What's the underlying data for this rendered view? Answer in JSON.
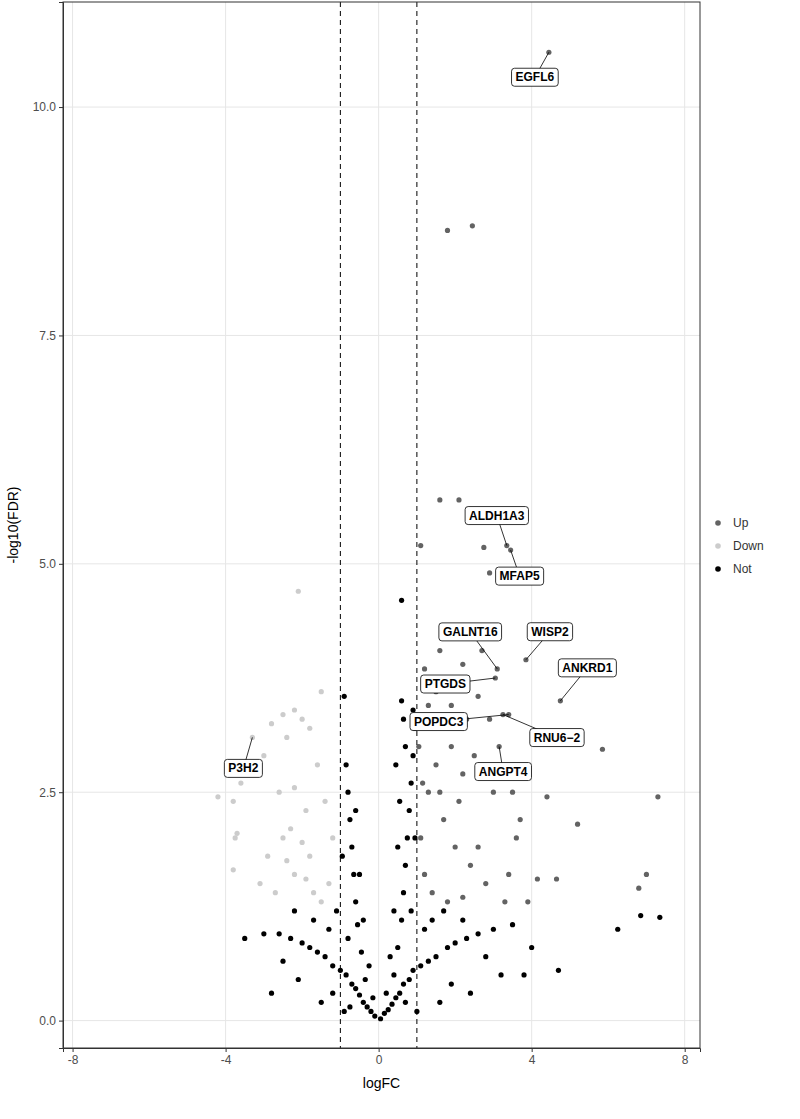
{
  "chart_data": {
    "type": "scatter",
    "x_label": "logFC",
    "y_label": "-log10(FDR)",
    "xlim": [
      -8.25,
      8.4
    ],
    "ylim": [
      -0.3,
      11.15
    ],
    "xticks": [
      -8,
      -4,
      0,
      4,
      8
    ],
    "yticks": [
      {
        "value": 0,
        "label": "0.0"
      },
      2.5,
      {
        "value": 5,
        "label": "5.0"
      },
      7.5,
      {
        "value": 10,
        "label": "10.0"
      }
    ],
    "grid": true,
    "legend": "right",
    "marker": "circle",
    "vlines": [
      -1,
      1
    ],
    "series": [
      {
        "name": "Up",
        "color": "#636363",
        "x": [
          4.45,
          3.35,
          3.45,
          3.1,
          3.85,
          4.75,
          3.05,
          3.4,
          3.25,
          3.15,
          1.8,
          2.45,
          1.6,
          2.1,
          2.75,
          1.1,
          2.9,
          1.6,
          2.2,
          1.5,
          2.6,
          1.9,
          2.3,
          1.3,
          5.85,
          7.3,
          5.2,
          4.4,
          3.7,
          3.6,
          4.65,
          4.15,
          7.0,
          6.8,
          3.9,
          3.3,
          2.8,
          2.4,
          2.0,
          1.7,
          1.3,
          1.5,
          2.5,
          3.0,
          1.2,
          1.4,
          1.8,
          2.2,
          2.6,
          3.4,
          1.1,
          1.6,
          2.1,
          3.5,
          1.9,
          2.9,
          2.2,
          1.05,
          1.2,
          2.7,
          1.15
        ],
        "values": [
          10.6,
          5.2,
          5.15,
          3.85,
          3.95,
          3.5,
          3.75,
          3.35,
          3.35,
          3.0,
          8.65,
          8.7,
          5.7,
          5.7,
          5.18,
          5.2,
          4.9,
          4.05,
          3.9,
          3.6,
          3.55,
          3.45,
          3.3,
          3.45,
          2.97,
          2.45,
          2.15,
          2.45,
          2.2,
          2.0,
          1.55,
          1.55,
          1.6,
          1.45,
          1.3,
          1.3,
          1.5,
          1.7,
          1.9,
          2.2,
          2.5,
          2.8,
          2.9,
          2.5,
          1.6,
          1.4,
          1.3,
          1.35,
          1.9,
          1.6,
          2.0,
          2.5,
          2.4,
          2.5,
          3.0,
          3.3,
          2.7,
          3.0,
          3.85,
          4.05,
          2.6
        ]
      },
      {
        "name": "Down",
        "color": "#cccccc",
        "x": [
          -3.3,
          -2.1,
          -1.5,
          -2.2,
          -2.5,
          -2.0,
          -1.8,
          -2.8,
          -2.4,
          -3.0,
          -3.4,
          -3.6,
          -4.2,
          -3.8,
          -2.2,
          -1.6,
          -2.6,
          -1.9,
          -2.3,
          -1.4,
          -3.7,
          -3.75,
          -3.8,
          -3.1,
          -2.7,
          -2.2,
          -1.8,
          -2.0,
          -1.7,
          -2.4,
          -1.3,
          -1.5,
          -2.9,
          -2.5,
          -1.2,
          -1.9
        ],
        "values": [
          3.1,
          4.7,
          3.6,
          3.4,
          3.35,
          3.3,
          3.2,
          3.25,
          3.1,
          2.9,
          2.75,
          2.6,
          2.45,
          2.4,
          2.55,
          2.8,
          2.5,
          2.3,
          2.1,
          2.4,
          2.05,
          2.0,
          1.65,
          1.5,
          1.4,
          1.6,
          1.8,
          1.95,
          1.4,
          1.75,
          1.5,
          1.3,
          1.8,
          2.0,
          2.0,
          1.55
        ]
      },
      {
        "name": "Not",
        "color": "#000000",
        "x": [
          0.05,
          -0.1,
          0.15,
          -0.2,
          0.25,
          -0.3,
          0.35,
          -0.4,
          0.45,
          -0.5,
          0.55,
          -0.6,
          0.65,
          -0.7,
          0.8,
          -0.85,
          0.9,
          -1.0,
          1.1,
          -1.2,
          1.3,
          -1.4,
          1.5,
          -1.6,
          1.8,
          -1.8,
          2.0,
          -2.0,
          2.3,
          -2.3,
          2.6,
          -2.6,
          3.0,
          -3.0,
          3.5,
          -3.5,
          4.0,
          4.7,
          6.25,
          6.85,
          7.35,
          3.2,
          -2.8,
          2.4,
          -1.5,
          1.6,
          -0.9,
          1.0,
          0.4,
          -0.35,
          0.5,
          -0.45,
          0.6,
          -0.55,
          0.65,
          -0.6,
          0.7,
          -0.65,
          0.75,
          -0.7,
          0.8,
          -0.75,
          0.85,
          -0.8,
          0.9,
          -0.85,
          0.95,
          -0.9,
          0.6,
          0.65,
          0.6,
          0.9,
          0.95,
          -0.95,
          1.2,
          -1.1,
          1.4,
          -1.3,
          0.3,
          -0.25,
          0.2,
          -0.15,
          0.7,
          -0.75,
          1.9,
          -2.1,
          2.8,
          -2.5,
          3.8,
          -1.2,
          0.5,
          -0.5,
          0.55,
          0.4,
          -0.4,
          0.85,
          -0.8,
          1.7,
          -1.7,
          2.2,
          -2.2,
          0.45,
          0.7,
          -0.6
        ],
        "values": [
          0.02,
          0.05,
          0.08,
          0.1,
          0.12,
          0.15,
          0.18,
          0.2,
          0.25,
          0.28,
          0.3,
          0.35,
          0.4,
          0.4,
          0.45,
          0.5,
          0.55,
          0.55,
          0.6,
          0.6,
          0.65,
          0.7,
          0.7,
          0.75,
          0.8,
          0.8,
          0.85,
          0.85,
          0.9,
          0.9,
          0.95,
          0.95,
          1.0,
          0.95,
          1.05,
          0.9,
          0.8,
          0.55,
          1.0,
          1.15,
          1.13,
          0.5,
          0.3,
          0.3,
          0.2,
          0.2,
          0.1,
          0.1,
          0.5,
          0.45,
          0.8,
          0.75,
          1.1,
          1.05,
          1.4,
          1.3,
          1.7,
          1.6,
          2.0,
          1.9,
          2.3,
          2.2,
          2.6,
          2.5,
          2.9,
          2.8,
          3.2,
          3.55,
          3.5,
          3.3,
          4.6,
          3.4,
          2.0,
          1.8,
          1.0,
          1.2,
          1.1,
          1.0,
          0.7,
          0.6,
          0.3,
          0.25,
          0.2,
          0.15,
          0.4,
          0.45,
          0.7,
          0.65,
          0.5,
          0.3,
          1.9,
          1.6,
          2.4,
          1.2,
          1.1,
          1.2,
          0.9,
          1.2,
          1.1,
          1.1,
          1.2,
          2.8,
          3.0,
          2.3
        ]
      }
    ],
    "annotations": [
      {
        "text": "EGFL6",
        "x": 4.45,
        "y": 10.6
      },
      {
        "text": "ALDH1A3",
        "x": 3.35,
        "y": 5.2
      },
      {
        "text": "MFAP5",
        "x": 3.45,
        "y": 5.15
      },
      {
        "text": "GALNT16",
        "x": 3.1,
        "y": 3.85
      },
      {
        "text": "WISP2",
        "x": 3.85,
        "y": 3.95
      },
      {
        "text": "ANKRD1",
        "x": 4.75,
        "y": 3.5
      },
      {
        "text": "PTGDS",
        "x": 3.05,
        "y": 3.75
      },
      {
        "text": "POPDC3",
        "x": 3.4,
        "y": 3.35
      },
      {
        "text": "RNU6−2",
        "x": 3.25,
        "y": 3.35
      },
      {
        "text": "ANGPT4",
        "x": 3.15,
        "y": 3.0
      },
      {
        "text": "P3H2",
        "x": -3.3,
        "y": 3.1
      }
    ]
  }
}
